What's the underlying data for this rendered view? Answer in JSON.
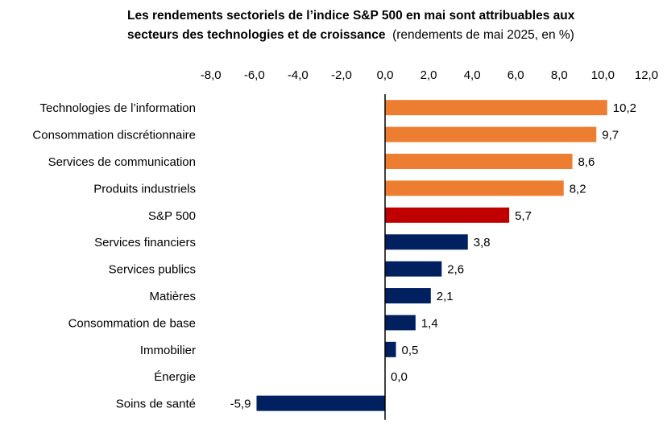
{
  "title": {
    "line1": "Les rendements sectoriels de l’indice S&P 500 en mai sont attribuables aux",
    "line2_bold": "secteurs des technologies et de croissance",
    "line2_normal": "(rendements de mai 2025, en %)"
  },
  "chart_data": {
    "type": "bar",
    "orientation": "horizontal",
    "title": "Les rendements sectoriels de l’indice S&P 500 en mai sont attribuables aux secteurs des technologies et de croissance",
    "subtitle": "(rendements de mai 2025, en %)",
    "xlabel": "",
    "ylabel": "",
    "xlim": [
      -8,
      12
    ],
    "axis_position": "top",
    "grid": false,
    "legend": "none",
    "ticks": [
      "-8,0",
      "-6,0",
      "-4,0",
      "-2,0",
      "0,0",
      "2,0",
      "4,0",
      "6,0",
      "8,0",
      "10,0",
      "12,0"
    ],
    "tick_values": [
      -8,
      -6,
      -4,
      -2,
      0,
      2,
      4,
      6,
      8,
      10,
      12
    ],
    "categories": [
      "Technologies de l’information",
      "Consommation discrétionnaire",
      "Services de communication",
      "Produits industriels",
      "S&P 500",
      "Services financiers",
      "Services publics",
      "Matières",
      "Consommation de base",
      "Immobilier",
      "Énergie",
      "Soins de santé"
    ],
    "values": [
      10.2,
      9.7,
      8.6,
      8.2,
      5.7,
      3.8,
      2.6,
      2.1,
      1.4,
      0.5,
      0.0,
      -5.9
    ],
    "labels": [
      "10,2",
      "9,7",
      "8,6",
      "8,2",
      "5,7",
      "3,8",
      "2,6",
      "2,1",
      "1,4",
      "0,5",
      "0,0",
      "-5,9"
    ],
    "groups": [
      "growth",
      "growth",
      "growth",
      "growth",
      "index",
      "other",
      "other",
      "other",
      "other",
      "other",
      "other",
      "other"
    ]
  },
  "colors": {
    "growth": "#ED7D31",
    "index": "#C00000",
    "other": "#002060",
    "axis": "#000000",
    "text": "#000000"
  }
}
